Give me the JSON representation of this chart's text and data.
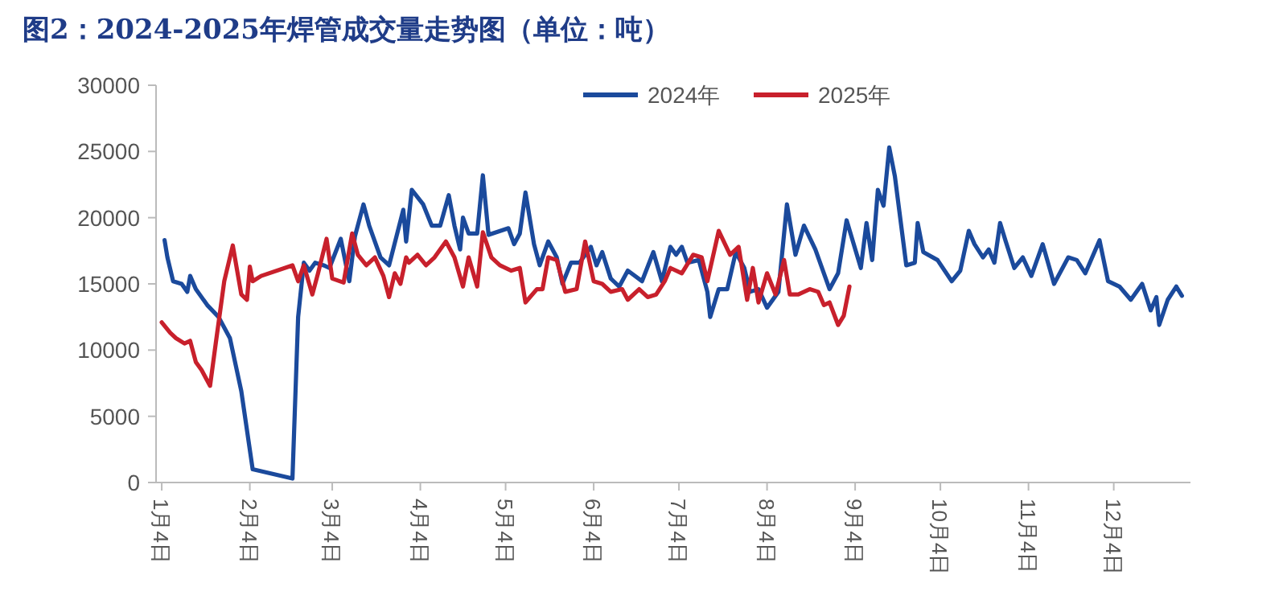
{
  "chart_data": {
    "type": "line",
    "title": "图2：2024-2025年焊管成交量走势图（单位：吨）",
    "x": [
      "--01-05",
      "--01-06",
      "--01-08",
      "--01-11",
      "--01-13",
      "--01-14",
      "--01-16",
      "--01-20",
      "--01-24",
      "--01-28",
      "--01-30",
      "--02-01",
      "--02-05",
      "--02-19",
      "--02-21",
      "--02-23",
      "--02-25",
      "--02-27",
      "--03-01",
      "--03-03",
      "--03-07",
      "--03-10",
      "--03-12",
      "--03-15",
      "--03-17",
      "--03-21",
      "--03-24",
      "--03-29",
      "--03-30",
      "--04-01",
      "--04-05",
      "--04-08",
      "--04-11",
      "--04-14",
      "--04-16",
      "--04-18",
      "--04-19",
      "--04-21",
      "--04-24",
      "--04-26",
      "--04-28",
      "--05-05",
      "--05-07",
      "--05-09",
      "--05-11",
      "--05-14",
      "--05-16",
      "--05-19",
      "--05-22",
      "--05-24",
      "--05-27",
      "--05-30",
      "--06-03",
      "--06-05",
      "--06-07",
      "--06-10",
      "--06-13",
      "--06-16",
      "--06-21",
      "--06-25",
      "--06-28",
      "--07-01",
      "--07-03",
      "--07-05",
      "--07-07",
      "--07-11",
      "--07-14",
      "--07-15",
      "--07-18",
      "--07-21",
      "--07-24",
      "--07-27",
      "--07-29",
      "--08-01",
      "--08-04",
      "--08-08",
      "--08-11",
      "--08-14",
      "--08-17",
      "--08-21",
      "--08-26",
      "--08-29",
      "--09-01",
      "--09-06",
      "--09-08",
      "--09-10",
      "--09-12",
      "--09-14",
      "--09-16",
      "--09-18",
      "--09-22",
      "--09-25",
      "--09-26",
      "--09-28",
      "--10-03",
      "--10-08",
      "--10-11",
      "--10-14",
      "--10-16",
      "--10-19",
      "--10-21",
      "--10-23",
      "--10-25",
      "--10-27",
      "--10-30",
      "--11-02",
      "--11-05",
      "--11-09",
      "--11-13",
      "--11-18",
      "--11-21",
      "--11-24",
      "--11-29",
      "--12-02",
      "--12-06",
      "--12-10",
      "--12-14",
      "--12-17",
      "--12-19",
      "--12-20",
      "--12-23",
      "--12-26",
      "--12-28"
    ],
    "series": [
      {
        "name": "2024年",
        "color": "#1b4a9c",
        "values": [
          18300,
          17000,
          15200,
          15000,
          14400,
          15600,
          14600,
          13400,
          12500,
          10900,
          8900,
          6900,
          1000,
          300,
          12500,
          16600,
          16000,
          16600,
          16400,
          16200,
          18400,
          15200,
          18600,
          21000,
          19400,
          17000,
          16400,
          20600,
          18200,
          22100,
          21000,
          19400,
          19400,
          21700,
          19400,
          17600,
          20000,
          18800,
          18800,
          23200,
          18700,
          19200,
          18000,
          18800,
          21900,
          18000,
          16400,
          18200,
          17000,
          15000,
          16600,
          16600,
          17800,
          16400,
          17400,
          15400,
          14800,
          16000,
          15200,
          17400,
          15200,
          17800,
          17200,
          17800,
          16600,
          16800,
          14400,
          12500,
          14600,
          14600,
          17400,
          16200,
          14400,
          14600,
          13200,
          14400,
          21000,
          17200,
          19400,
          17600,
          14600,
          15800,
          19800,
          16200,
          19600,
          16800,
          22100,
          20900,
          25300,
          23100,
          16400,
          16600,
          19600,
          17400,
          16800,
          15200,
          16000,
          19000,
          18000,
          17000,
          17600,
          16600,
          19600,
          18200,
          16200,
          17000,
          15600,
          18000,
          15000,
          17000,
          16800,
          15800,
          18300,
          15200,
          14800,
          13800,
          15000,
          13000,
          14000,
          11900,
          13800,
          14800,
          14100
        ]
      },
      {
        "name": "2025年",
        "color": "#c8202c",
        "x": [
          "--01-04",
          "--01-07",
          "--01-09",
          "--01-12",
          "--01-14",
          "--01-16",
          "--01-18",
          "--01-21",
          "--01-23",
          "--01-26",
          "--01-29",
          "--02-01",
          "--02-03",
          "--02-04",
          "--02-05",
          "--02-08",
          "--02-19",
          "--02-21",
          "--02-23",
          "--02-26",
          "--02-28",
          "--03-02",
          "--03-04",
          "--03-08",
          "--03-11",
          "--03-13",
          "--03-16",
          "--03-19",
          "--03-22",
          "--03-24",
          "--03-26",
          "--03-28",
          "--03-30",
          "--03-31",
          "--04-03",
          "--04-06",
          "--04-09",
          "--04-13",
          "--04-16",
          "--04-19",
          "--04-21",
          "--04-24",
          "--04-26",
          "--04-29",
          "--05-02",
          "--05-06",
          "--05-09",
          "--05-11",
          "--05-15",
          "--05-17",
          "--05-19",
          "--05-22",
          "--05-25",
          "--05-29",
          "--06-01",
          "--06-04",
          "--06-07",
          "--06-10",
          "--06-14",
          "--06-16",
          "--06-20",
          "--06-23",
          "--06-26",
          "--06-29",
          "--07-01",
          "--07-05",
          "--07-09",
          "--07-12",
          "--07-14",
          "--07-18",
          "--07-22",
          "--07-25",
          "--07-28",
          "--07-30",
          "--08-01",
          "--08-04",
          "--08-07",
          "--08-10",
          "--08-12",
          "--08-15",
          "--08-19",
          "--08-22",
          "--08-24",
          "--08-26",
          "--08-29",
          "--08-31",
          "--09-02"
        ],
        "values": [
          12100,
          11300,
          10900,
          10500,
          10700,
          9100,
          8500,
          7300,
          10500,
          15200,
          17900,
          14200,
          13800,
          16300,
          15200,
          15600,
          16400,
          15200,
          16400,
          14200,
          15800,
          18400,
          15400,
          15100,
          18800,
          17200,
          16400,
          17000,
          15600,
          14000,
          15800,
          15000,
          17000,
          16600,
          17200,
          16400,
          17000,
          18200,
          17000,
          14800,
          17000,
          14800,
          18900,
          17000,
          16400,
          16000,
          16200,
          13600,
          14600,
          14600,
          17000,
          16800,
          14400,
          14600,
          18200,
          15200,
          15000,
          14400,
          14600,
          13800,
          14600,
          14000,
          14200,
          15200,
          16200,
          15800,
          17200,
          17000,
          15200,
          19000,
          17200,
          17800,
          13800,
          16200,
          13600,
          15800,
          14200,
          16800,
          14200,
          14200,
          14600,
          14400,
          13400,
          13600,
          11900,
          12600,
          14800
        ]
      }
    ],
    "xlim": [
      "--01-02",
      "--12-31"
    ],
    "xticks": [
      {
        "value": "--01-04",
        "label": "1月4日"
      },
      {
        "value": "--02-04",
        "label": "2月4日"
      },
      {
        "value": "--03-04",
        "label": "3月4日"
      },
      {
        "value": "--04-04",
        "label": "4月4日"
      },
      {
        "value": "--05-04",
        "label": "5月4日"
      },
      {
        "value": "--06-04",
        "label": "6月4日"
      },
      {
        "value": "--07-04",
        "label": "7月4日"
      },
      {
        "value": "--08-04",
        "label": "8月4日"
      },
      {
        "value": "--09-04",
        "label": "9月4日"
      },
      {
        "value": "--10-04",
        "label": "10月4日"
      },
      {
        "value": "--11-04",
        "label": "11月4日"
      },
      {
        "value": "--12-04",
        "label": "12月4日"
      }
    ],
    "ylim": [
      0,
      30000
    ],
    "yticks": [
      0,
      5000,
      10000,
      15000,
      20000,
      25000,
      30000
    ],
    "legend": "top",
    "grid": false,
    "marker": "none",
    "line_style": "solid"
  }
}
